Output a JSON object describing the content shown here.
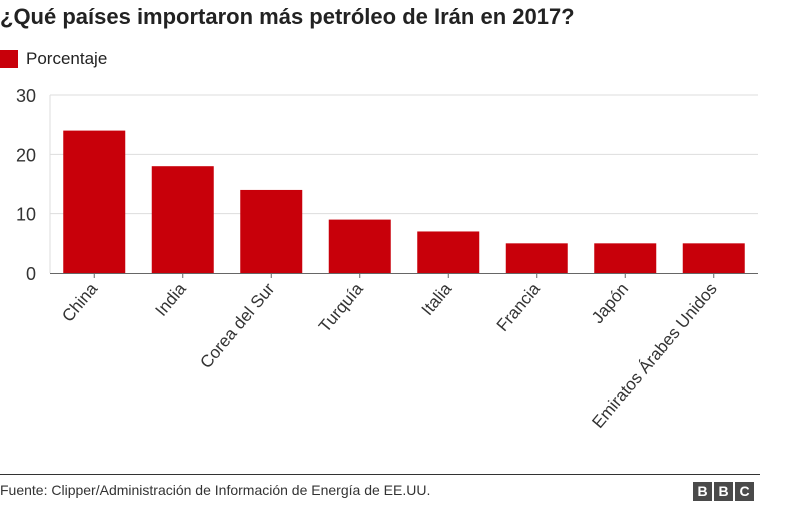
{
  "chart_data": {
    "type": "bar",
    "title": "¿Qué países importaron más petróleo de Irán en 2017?",
    "categories": [
      "China",
      "India",
      "Corea del Sur",
      "Turquía",
      "Italia",
      "Francia",
      "Japón",
      "Emiratos Árabes Unidos"
    ],
    "series": [
      {
        "name": "Porcentaje",
        "values": [
          24,
          18,
          14,
          9,
          7,
          5,
          5,
          5
        ]
      }
    ],
    "ylim": [
      0,
      30
    ],
    "yticks": [
      0,
      10,
      20,
      30
    ],
    "grid": true,
    "legend_position": "top-left"
  },
  "colors": {
    "bar": "#c8000a",
    "grid": "#dddddd",
    "axis": "#666666"
  },
  "footer": {
    "source": "Fuente: Clipper/Administración de Información de Energía de EE.UU.",
    "logo_letters": [
      "B",
      "B",
      "C"
    ]
  }
}
